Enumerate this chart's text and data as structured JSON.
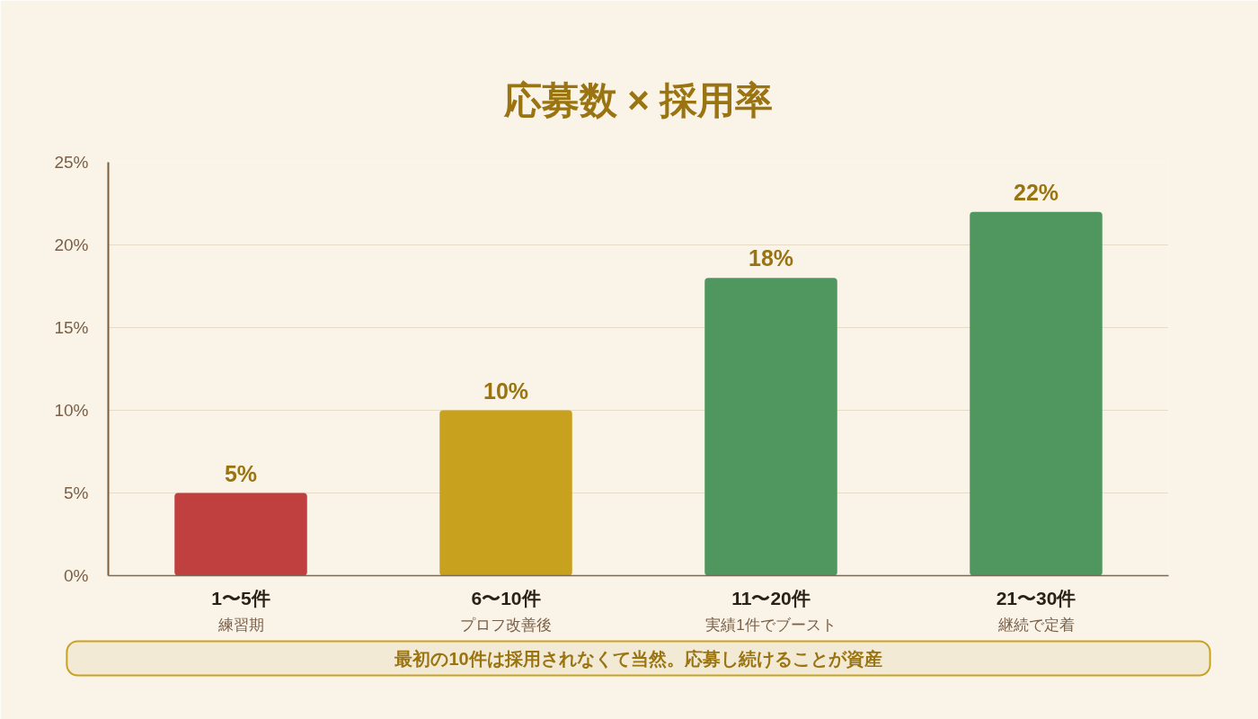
{
  "chart_data": {
    "type": "bar",
    "title": "応募数 × 採用率",
    "categories": [
      "1〜5件",
      "6〜10件",
      "11〜20件",
      "21〜30件"
    ],
    "values": [
      5,
      10,
      18,
      22
    ],
    "colors": [
      "#c04040",
      "#c8a21e",
      "#50965f",
      "#50965f"
    ],
    "value_labels": [
      "5%",
      "10%",
      "18%",
      "22%"
    ],
    "ylim": [
      0,
      25
    ],
    "yticks": [
      {
        "value": 0,
        "label": "0%"
      },
      {
        "value": 5,
        "label": "5%"
      },
      {
        "value": 10,
        "label": "10%"
      },
      {
        "value": 15,
        "label": "15%"
      },
      {
        "value": 20,
        "label": "20%"
      },
      {
        "value": 25,
        "label": "25%"
      }
    ],
    "grid": "y",
    "annotations": [
      "練習期",
      "プロフ改善後",
      "実績1件でブースト",
      "継続で定着",
      "最初の10件は採用されなくて当然。応募し続けることが資産"
    ]
  }
}
